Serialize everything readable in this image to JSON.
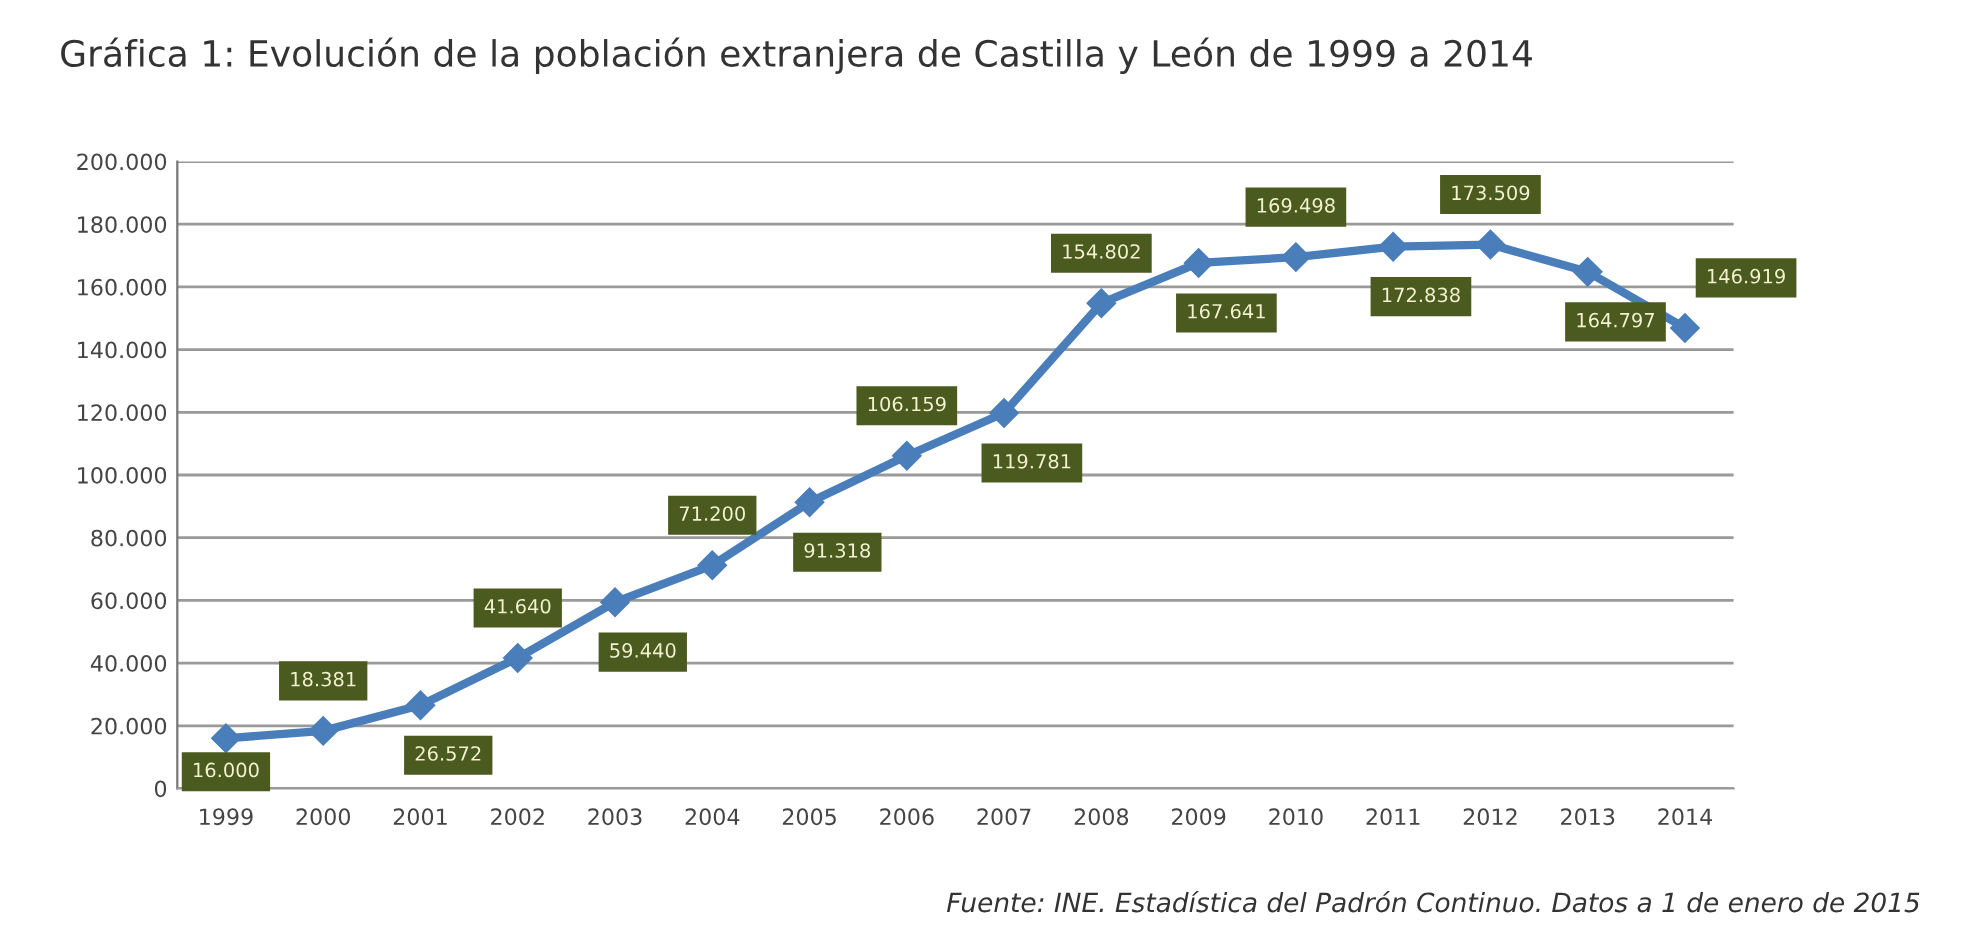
{
  "chart_data": {
    "type": "line",
    "title": "Gráfica 1: Evolución de la población extranjera de Castilla y León de 1999 a 2014",
    "categories": [
      "1999",
      "2000",
      "2001",
      "2002",
      "2003",
      "2004",
      "2005",
      "2006",
      "2007",
      "2008",
      "2009",
      "2010",
      "2011",
      "2012",
      "2013",
      "2014"
    ],
    "series": [
      {
        "color": "#4a7ebb",
        "values": [
          16000,
          18381,
          26572,
          41640,
          59440,
          71200,
          91318,
          106159,
          119781,
          154802,
          167641,
          169498,
          172838,
          173509,
          164797,
          146919
        ],
        "value_labels": [
          "16.000",
          "18.381",
          "26.572",
          "41.640",
          "59.440",
          "71.200",
          "91.318",
          "106.159",
          "119.781",
          "154.802",
          "167.641",
          "169.498",
          "172.838",
          "173.509",
          "164.797",
          "146.919"
        ]
      }
    ],
    "ylim": [
      0,
      200000
    ],
    "yticks": [
      {
        "value": 0,
        "label": "0"
      },
      {
        "value": 20000,
        "label": "20.000"
      },
      {
        "value": 40000,
        "label": "40.000"
      },
      {
        "value": 60000,
        "label": "60.000"
      },
      {
        "value": 80000,
        "label": "80.000"
      },
      {
        "value": 100000,
        "label": "100.000"
      },
      {
        "value": 120000,
        "label": "120.000"
      },
      {
        "value": 140000,
        "label": "140.000"
      },
      {
        "value": 160000,
        "label": "160.000"
      },
      {
        "value": 180000,
        "label": "180.000"
      },
      {
        "value": 200000,
        "label": "200.000"
      }
    ],
    "grid": "y",
    "marker": "diamond",
    "line_style": "solid",
    "annotations": [
      "Fuente: INE. Estadística del Padrón Continuo. Datos a 1 de enero de 2015"
    ]
  }
}
